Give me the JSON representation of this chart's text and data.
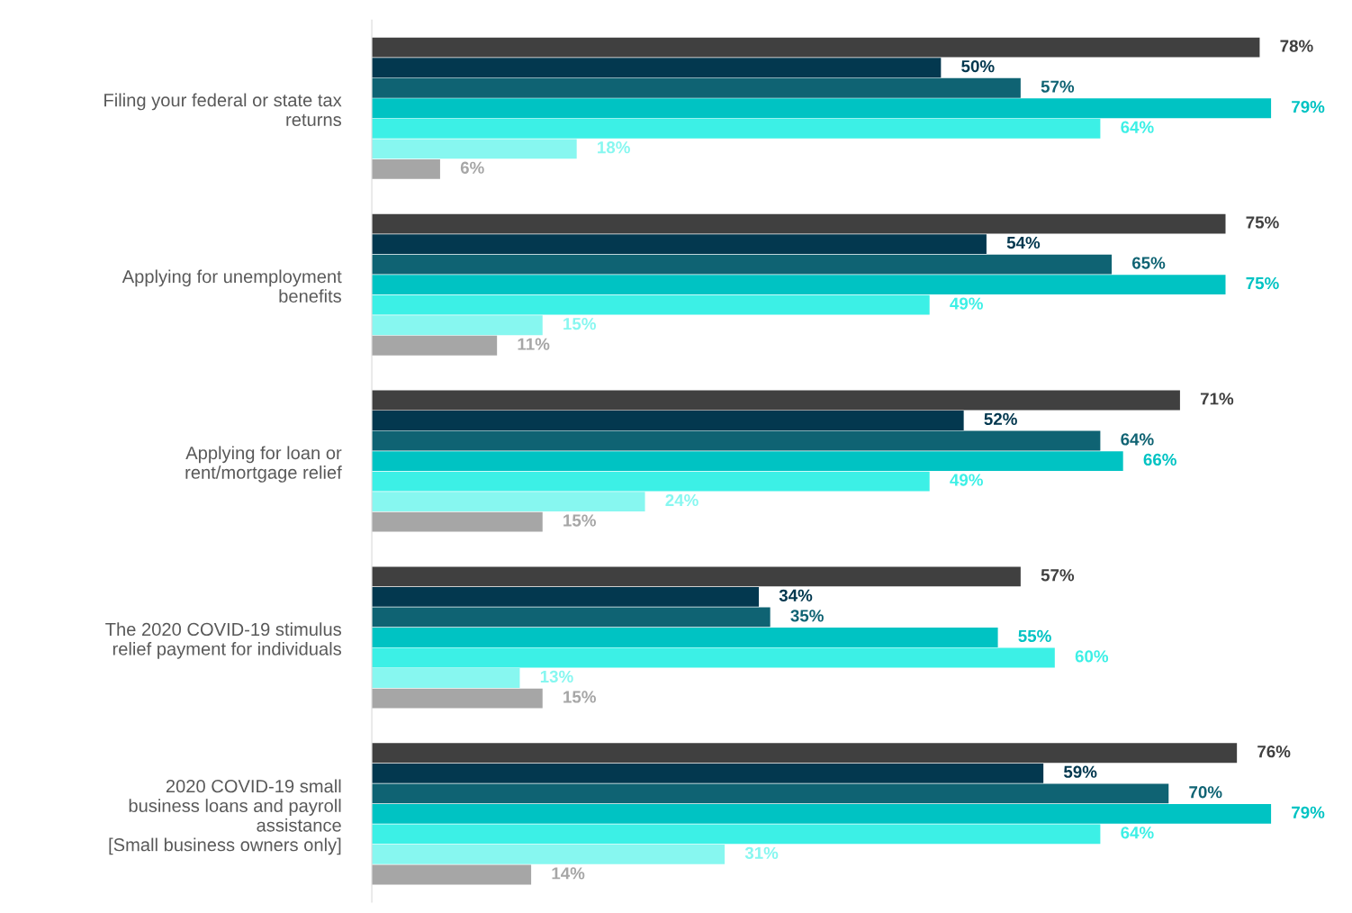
{
  "chart_data": {
    "type": "bar",
    "orientation": "horizontal",
    "legend": false,
    "grid": false,
    "tick_labels": "y",
    "categories": [
      "Filing your federal or state tax\nreturns",
      "Applying for unemployment\nbenefits",
      "Applying for loan or\nrent/mortgage relief",
      "The 2020 COVID-19 stimulus\nrelief payment for individuals",
      "2020 COVID-19 small\nbusiness loans and payroll\nassistance\n[Small business owners only]"
    ],
    "series": [
      {
        "color": "#404040",
        "values": [
          78,
          75,
          71,
          57,
          76
        ],
        "value_labels": [
          "78%",
          "75%",
          "71%",
          "57%",
          "76%"
        ]
      },
      {
        "color": "#03384f",
        "values": [
          50,
          54,
          52,
          34,
          59
        ],
        "value_labels": [
          "50%",
          "54%",
          "52%",
          "34%",
          "59%"
        ]
      },
      {
        "color": "#0f6373",
        "values": [
          57,
          65,
          64,
          35,
          70
        ],
        "value_labels": [
          "57%",
          "65%",
          "64%",
          "35%",
          "70%"
        ]
      },
      {
        "color": "#00c3c3",
        "values": [
          79,
          75,
          66,
          55,
          79
        ],
        "value_labels": [
          "79%",
          "75%",
          "66%",
          "55%",
          "79%"
        ]
      },
      {
        "color": "#3cf0e6",
        "values": [
          64,
          49,
          49,
          60,
          64
        ],
        "value_labels": [
          "64%",
          "49%",
          "49%",
          "60%",
          "64%"
        ]
      },
      {
        "color": "#87f7f0",
        "values": [
          18,
          15,
          24,
          13,
          31
        ],
        "value_labels": [
          "18%",
          "15%",
          "24%",
          "13%",
          "31%"
        ]
      },
      {
        "color": "#a6a6a6",
        "values": [
          6,
          11,
          15,
          15,
          14
        ],
        "value_labels": [
          "6%",
          "11%",
          "15%",
          "15%",
          "14%"
        ]
      }
    ]
  }
}
